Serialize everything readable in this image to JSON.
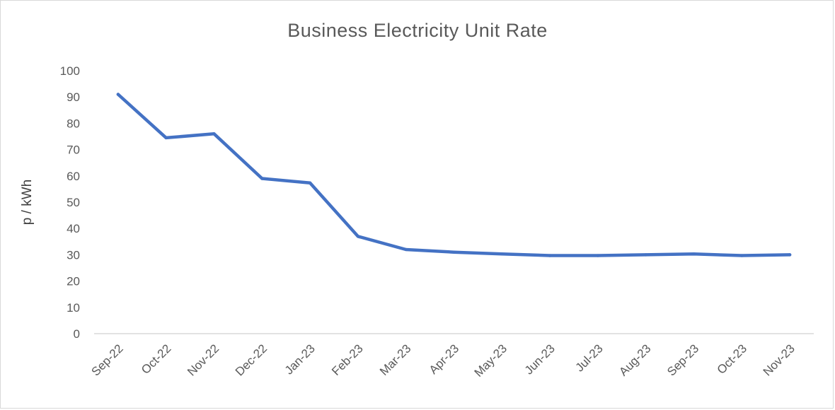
{
  "chart_data": {
    "type": "line",
    "title": "Business Electricity Unit Rate",
    "xlabel": "",
    "ylabel": "p / kWh",
    "ylim": [
      0,
      100
    ],
    "yticks": [
      "0",
      "10",
      "20",
      "30",
      "40",
      "50",
      "60",
      "70",
      "80",
      "90",
      "100"
    ],
    "categories": [
      "Sep-22",
      "Oct-22",
      "Nov-22",
      "Dec-22",
      "Jan-23",
      "Feb-23",
      "Mar-23",
      "Apr-23",
      "May-23",
      "Jun-23",
      "Jul-23",
      "Aug-23",
      "Sep-23",
      "Oct-23",
      "Nov-23"
    ],
    "series": [
      {
        "color": "#4472c4",
        "values": [
          91,
          74.5,
          76,
          59,
          57.3,
          37,
          32,
          31,
          30.3,
          29.7,
          29.7,
          30,
          30.3,
          29.7,
          30
        ]
      }
    ],
    "grid": false,
    "legend": "none"
  }
}
